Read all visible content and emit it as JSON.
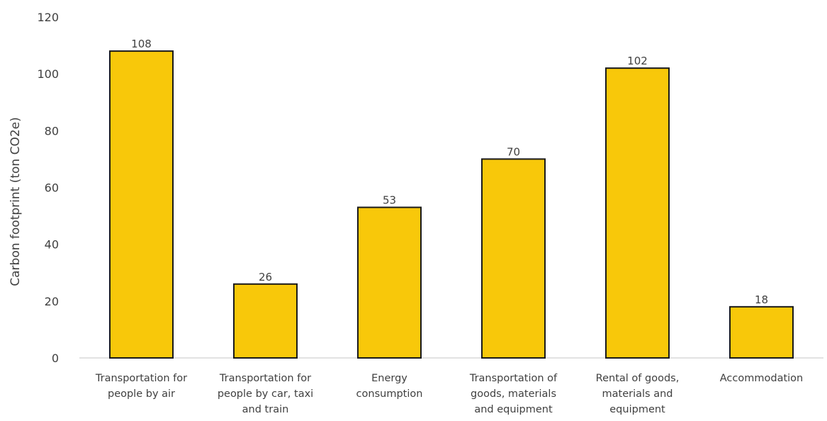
{
  "chart_data": {
    "type": "bar",
    "categories": [
      [
        "Transportation for",
        "people by air"
      ],
      [
        "Transportation for",
        "people by car, taxi",
        "and train"
      ],
      [
        "Energy",
        "consumption"
      ],
      [
        "Transportation of",
        "goods, materials",
        "and equipment"
      ],
      [
        "Rental of goods,",
        "materials and",
        "equipment"
      ],
      [
        "Accommodation"
      ]
    ],
    "values": [
      108,
      26,
      53,
      70,
      102,
      18
    ],
    "data_labels": [
      "108",
      "26",
      "53",
      "70",
      "102",
      "18"
    ],
    "title": "",
    "xlabel": "",
    "ylabel": "Carbon footprint (ton CO2e)",
    "ylim": [
      0,
      120
    ],
    "yticks": [
      0,
      20,
      40,
      60,
      80,
      100,
      120
    ],
    "grid": false,
    "legend": "none",
    "colors": {
      "bar_fill": "#f8c80a",
      "bar_edge": "#1a1a1a",
      "axis": "#d9d9d9",
      "text": "#404040"
    }
  }
}
